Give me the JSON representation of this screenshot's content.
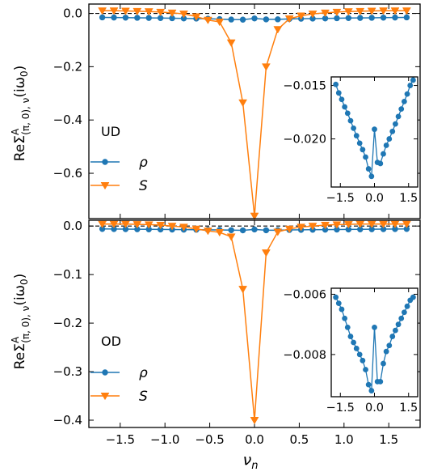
{
  "colors": {
    "rho": "#1f77b4",
    "S": "#ff7f0e",
    "zero_line": "#000000"
  },
  "figure": {
    "ylabel_main": "ReΣ",
    "ylabel_sup": "A",
    "ylabel_sub": "(π, 0), ν",
    "ylabel_tail": "(iω",
    "ylabel_tail_sub": "0",
    "ylabel_close": ")",
    "xlabel_main": "ν",
    "xlabel_sub": "n"
  },
  "chart_data": [
    {
      "panel": "top",
      "type": "line",
      "tag": "UD",
      "xlim": [
        -1.85,
        1.85
      ],
      "ylim": [
        -0.77,
        0.035
      ],
      "xticks": [
        -1.5,
        -1.0,
        -0.5,
        0.0,
        0.5,
        1.0,
        1.5
      ],
      "xtick_labels": [
        "",
        "",
        "",
        "",
        "",
        "",
        ""
      ],
      "yticks": [
        0.0,
        -0.2,
        -0.4,
        -0.6
      ],
      "ytick_labels": [
        "0.0",
        "−0.2",
        "−0.4",
        "−0.6"
      ],
      "hline": 0.0,
      "legend": {
        "placement": "lower-left"
      },
      "x": [
        -1.7,
        -1.57,
        -1.44,
        -1.31,
        -1.18,
        -1.05,
        -0.92,
        -0.79,
        -0.65,
        -0.52,
        -0.39,
        -0.26,
        -0.13,
        0.0,
        0.13,
        0.26,
        0.39,
        0.52,
        0.65,
        0.79,
        0.92,
        1.05,
        1.18,
        1.31,
        1.44,
        1.57,
        1.7
      ],
      "series": [
        {
          "name": "ρ",
          "key": "rho",
          "marker": "circle",
          "values": [
            -0.015,
            -0.0155,
            -0.016,
            -0.0165,
            -0.017,
            -0.0175,
            -0.018,
            -0.019,
            -0.0195,
            -0.02,
            -0.0215,
            -0.023,
            -0.0235,
            -0.019,
            -0.0225,
            -0.0222,
            -0.021,
            -0.02,
            -0.0195,
            -0.019,
            -0.018,
            -0.0175,
            -0.017,
            -0.0165,
            -0.016,
            -0.0155,
            -0.015
          ]
        },
        {
          "name": "S",
          "key": "S",
          "marker": "triangle-down",
          "values": [
            0.01,
            0.01,
            0.009,
            0.008,
            0.007,
            0.005,
            0.002,
            -0.002,
            -0.012,
            -0.025,
            -0.032,
            -0.11,
            -0.335,
            -0.76,
            -0.2,
            -0.06,
            -0.02,
            -0.009,
            -0.002,
            0.002,
            0.005,
            0.007,
            0.008,
            0.009,
            0.01,
            0.01,
            0.01
          ]
        }
      ],
      "inset": {
        "xlim": [
          -1.9,
          1.9
        ],
        "ylim": [
          -0.0245,
          -0.0142
        ],
        "xticks": [
          -1.5,
          0.0,
          1.5
        ],
        "xtick_labels": [
          "−1.5",
          "0.0",
          "1.5"
        ],
        "yticks": [
          -0.015,
          -0.02
        ],
        "ytick_labels": [
          "−0.015",
          "−0.020"
        ],
        "series_key": "rho",
        "x": [
          -1.7,
          -1.57,
          -1.44,
          -1.31,
          -1.18,
          -1.05,
          -0.92,
          -0.79,
          -0.65,
          -0.52,
          -0.39,
          -0.26,
          -0.13,
          0.0,
          0.13,
          0.26,
          0.39,
          0.52,
          0.65,
          0.79,
          0.92,
          1.05,
          1.18,
          1.31,
          1.44,
          1.57,
          1.7
        ],
        "values": [
          -0.0149,
          -0.0157,
          -0.0163,
          -0.017,
          -0.0176,
          -0.0183,
          -0.019,
          -0.0197,
          -0.0204,
          -0.021,
          -0.0217,
          -0.0228,
          -0.0235,
          -0.0191,
          -0.0222,
          -0.0223,
          -0.0214,
          -0.0206,
          -0.02,
          -0.0193,
          -0.0186,
          -0.0179,
          -0.0172,
          -0.0165,
          -0.0158,
          -0.015,
          -0.0145
        ]
      }
    },
    {
      "panel": "bottom",
      "type": "line",
      "tag": "OD",
      "xlim": [
        -1.85,
        1.85
      ],
      "ylim": [
        -0.415,
        0.012
      ],
      "xticks": [
        -1.5,
        -1.0,
        -0.5,
        0.0,
        0.5,
        1.0,
        1.5
      ],
      "xtick_labels": [
        "−1.5",
        "−1.0",
        "−0.5",
        "0.0",
        "0.5",
        "1.0",
        "1.5"
      ],
      "yticks": [
        0.0,
        -0.1,
        -0.2,
        -0.3,
        -0.4
      ],
      "ytick_labels": [
        "0.0",
        "−0.1",
        "−0.2",
        "−0.3",
        "−0.4"
      ],
      "hline": 0.0,
      "legend": {
        "placement": "lower-left"
      },
      "x": [
        -1.7,
        -1.57,
        -1.44,
        -1.31,
        -1.18,
        -1.05,
        -0.92,
        -0.79,
        -0.65,
        -0.52,
        -0.39,
        -0.26,
        -0.13,
        0.0,
        0.13,
        0.26,
        0.39,
        0.52,
        0.65,
        0.79,
        0.92,
        1.05,
        1.18,
        1.31,
        1.44,
        1.57,
        1.7
      ],
      "series": [
        {
          "name": "ρ",
          "key": "rho",
          "marker": "circle",
          "values": [
            -0.006,
            -0.0062,
            -0.0064,
            -0.0066,
            -0.0068,
            -0.007,
            -0.0072,
            -0.0074,
            -0.0076,
            -0.0078,
            -0.008,
            -0.0085,
            -0.0089,
            -0.007,
            -0.0087,
            -0.0086,
            -0.0081,
            -0.0078,
            -0.0076,
            -0.0074,
            -0.0072,
            -0.007,
            -0.0068,
            -0.0066,
            -0.0064,
            -0.0062,
            -0.006
          ]
        },
        {
          "name": "S",
          "key": "S",
          "marker": "triangle-down",
          "values": [
            0.004,
            0.004,
            0.004,
            0.0035,
            0.003,
            0.002,
            0.0,
            -0.002,
            -0.006,
            -0.01,
            -0.013,
            -0.022,
            -0.13,
            -0.4,
            -0.055,
            -0.012,
            -0.006,
            -0.002,
            0.0,
            0.002,
            0.003,
            0.0035,
            0.004,
            0.004,
            0.004,
            0.004,
            0.004
          ]
        }
      ],
      "inset": {
        "xlim": [
          -1.9,
          1.9
        ],
        "ylim": [
          -0.0094,
          -0.0058
        ],
        "xticks": [
          -1.5,
          0.0,
          1.5
        ],
        "xtick_labels": [
          "−1.5",
          "0.0",
          "1.5"
        ],
        "yticks": [
          -0.006,
          -0.008
        ],
        "ytick_labels": [
          "−0.006",
          "−0.008"
        ],
        "series_key": "rho",
        "x": [
          -1.7,
          -1.57,
          -1.44,
          -1.31,
          -1.18,
          -1.05,
          -0.92,
          -0.79,
          -0.65,
          -0.52,
          -0.39,
          -0.26,
          -0.13,
          0.0,
          0.13,
          0.26,
          0.39,
          0.52,
          0.65,
          0.79,
          0.92,
          1.05,
          1.18,
          1.31,
          1.44,
          1.57,
          1.7
        ],
        "values": [
          -0.0061,
          -0.0063,
          -0.0065,
          -0.0068,
          -0.0071,
          -0.0074,
          -0.0076,
          -0.0078,
          -0.008,
          -0.0082,
          -0.0085,
          -0.009,
          -0.0092,
          -0.0071,
          -0.0089,
          -0.0089,
          -0.0083,
          -0.0079,
          -0.0077,
          -0.0074,
          -0.0072,
          -0.007,
          -0.0068,
          -0.0066,
          -0.0064,
          -0.0062,
          -0.0061
        ]
      }
    }
  ]
}
